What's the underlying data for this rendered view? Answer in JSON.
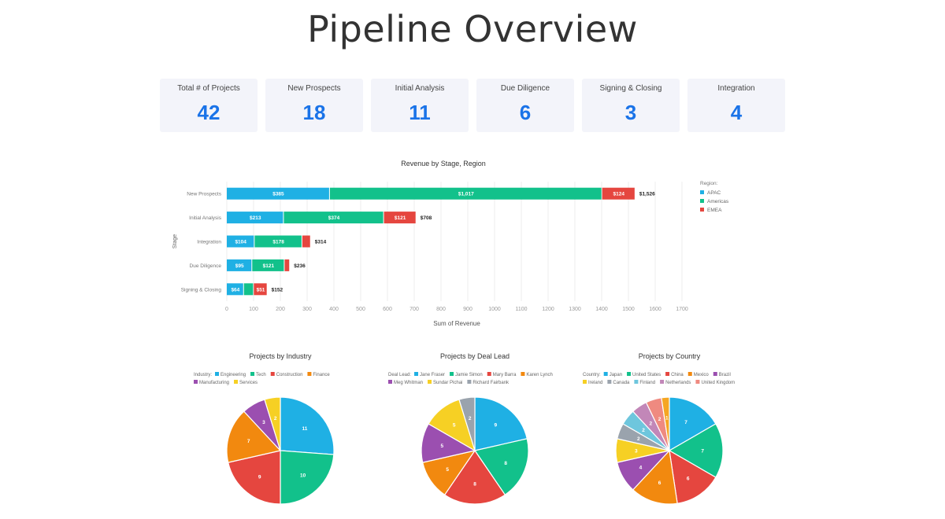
{
  "page": {
    "title": "Pipeline Overview"
  },
  "kpis": [
    {
      "label": "Total # of Projects",
      "value": "42"
    },
    {
      "label": "New Prospects",
      "value": "18"
    },
    {
      "label": "Initial Analysis",
      "value": "11"
    },
    {
      "label": "Due Diligence",
      "value": "6"
    },
    {
      "label": "Signing & Closing",
      "value": "3"
    },
    {
      "label": "Integration",
      "value": "4"
    }
  ],
  "colors": {
    "accent": "#1a73e8",
    "kpi_bg": "#f3f4fa"
  },
  "chart_data": [
    {
      "type": "bar",
      "orientation": "horizontal",
      "stacked": true,
      "title": "Revenue by Stage, Region",
      "xlabel": "Sum of Revenue",
      "ylabel": "Stage",
      "xlim": [
        0,
        1700
      ],
      "xticks": [
        0,
        100,
        200,
        300,
        400,
        500,
        600,
        700,
        800,
        900,
        1000,
        1100,
        1200,
        1300,
        1400,
        1500,
        1600,
        1700
      ],
      "legend_title": "Region:",
      "legend_position": "top-right",
      "categories": [
        "New Prospects",
        "Initial Analysis",
        "Integration",
        "Due Diligence",
        "Signing & Closing"
      ],
      "series": [
        {
          "name": "APAC",
          "color": "#1fb0e4",
          "values": [
            385,
            213,
            104,
            95,
            64
          ],
          "labels": [
            "$385",
            "$213",
            "$104",
            "$95",
            "$64"
          ]
        },
        {
          "name": "Americas",
          "color": "#12c18b",
          "values": [
            1017,
            374,
            178,
            121,
            37
          ],
          "labels": [
            "$1,017",
            "$374",
            "$178",
            "$121",
            ""
          ]
        },
        {
          "name": "EMEA",
          "color": "#e5463f",
          "values": [
            124,
            121,
            32,
            20,
            51
          ],
          "labels": [
            "$124",
            "$121",
            "",
            "",
            "$51"
          ]
        }
      ],
      "totals": [
        "$1,526",
        "$708",
        "$314",
        "$236",
        "$152"
      ]
    },
    {
      "type": "pie",
      "title": "Projects by Industry",
      "legend_title": "Industry:",
      "legend_position": "top",
      "slices": [
        {
          "name": "Engineering",
          "value": 11,
          "color": "#1fb0e4"
        },
        {
          "name": "Tech",
          "value": 10,
          "color": "#12c18b"
        },
        {
          "name": "Construction",
          "value": 9,
          "color": "#e5463f"
        },
        {
          "name": "Finance",
          "value": 7,
          "color": "#f2890f"
        },
        {
          "name": "Manufacturing",
          "value": 3,
          "color": "#9b4fb0"
        },
        {
          "name": "Services",
          "value": 2,
          "color": "#f6d024"
        }
      ]
    },
    {
      "type": "pie",
      "title": "Projects by Deal Lead",
      "legend_title": "Deal Lead:",
      "legend_position": "top",
      "slices": [
        {
          "name": "Jane Fraser",
          "value": 9,
          "color": "#1fb0e4"
        },
        {
          "name": "Jamie Simon",
          "value": 8,
          "color": "#12c18b"
        },
        {
          "name": "Mary Barra",
          "value": 8,
          "color": "#e5463f"
        },
        {
          "name": "Karen Lynch",
          "value": 5,
          "color": "#f2890f"
        },
        {
          "name": "Meg Whitman",
          "value": 5,
          "color": "#9b4fb0"
        },
        {
          "name": "Sundar Pichai",
          "value": 5,
          "color": "#f6d024"
        },
        {
          "name": "Richard Fairbank",
          "value": 2,
          "color": "#9aa3ad"
        }
      ]
    },
    {
      "type": "pie",
      "title": "Projects by Country",
      "legend_title": "Country:",
      "legend_position": "top",
      "slices": [
        {
          "name": "Japan",
          "value": 7,
          "color": "#1fb0e4"
        },
        {
          "name": "United States",
          "value": 7,
          "color": "#12c18b"
        },
        {
          "name": "China",
          "value": 6,
          "color": "#e5463f"
        },
        {
          "name": "Mexico",
          "value": 6,
          "color": "#f2890f"
        },
        {
          "name": "Brazil",
          "value": 4,
          "color": "#9b4fb0"
        },
        {
          "name": "Ireland",
          "value": 3,
          "color": "#f6d024"
        },
        {
          "name": "Canada",
          "value": 2,
          "color": "#9aa3ad"
        },
        {
          "name": "Finland",
          "value": 2,
          "color": "#6ec6dd"
        },
        {
          "name": "Netherlands",
          "value": 2,
          "color": "#c287b8"
        },
        {
          "name": "United Kingdom",
          "value": 2,
          "color": "#ef8a80"
        },
        {
          "name": "",
          "value": 1,
          "color": "#f5a623"
        }
      ]
    }
  ]
}
